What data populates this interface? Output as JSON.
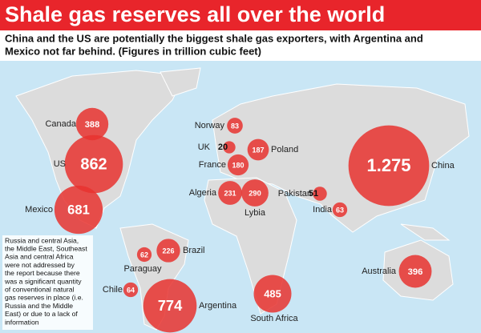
{
  "title": "Shale gas reserves all over the world",
  "subtitle": [
    "China and the US are potentially the biggest shale gas exporters, with Argentina and",
    "Mexico not far behind. (Figures in trillion cubic feet)"
  ],
  "markers": [
    {
      "country": "Canada",
      "value": 388,
      "label": "388"
    },
    {
      "country": "US",
      "value": 862,
      "label": "862"
    },
    {
      "country": "Mexico",
      "value": 681,
      "label": "681"
    },
    {
      "country": "Norway",
      "value": 83,
      "label": "83"
    },
    {
      "country": "UK",
      "value": 20,
      "label": "20"
    },
    {
      "country": "Poland",
      "value": 187,
      "label": "187"
    },
    {
      "country": "France",
      "value": 180,
      "label": "180"
    },
    {
      "country": "Algeria",
      "value": 231,
      "label": "231"
    },
    {
      "country": "Lybia",
      "value": 290,
      "label": "290"
    },
    {
      "country": "Pakistan",
      "value": 51,
      "label": "51"
    },
    {
      "country": "India",
      "value": 63,
      "label": "63"
    },
    {
      "country": "China",
      "value": 1275,
      "label": "1.275"
    },
    {
      "country": "Brazil",
      "value": 226,
      "label": "226"
    },
    {
      "country": "Paraguay",
      "value": 62,
      "label": "62"
    },
    {
      "country": "Chile",
      "value": 64,
      "label": "64"
    },
    {
      "country": "Argentina",
      "value": 774,
      "label": "774"
    },
    {
      "country": "South Africa",
      "value": 485,
      "label": "485"
    },
    {
      "country": "Australia",
      "value": 396,
      "label": "396"
    }
  ],
  "note": [
    "Russia and central Asia,",
    "the Middle East, Southeast",
    "Asia and central Africa",
    "were not addressed by",
    "the report because there",
    "was a significant quantity",
    "of conventional natural",
    "gas reserves in place (i.e.",
    "Russia and the Middle",
    "East) or due to a lack of",
    "information"
  ]
}
